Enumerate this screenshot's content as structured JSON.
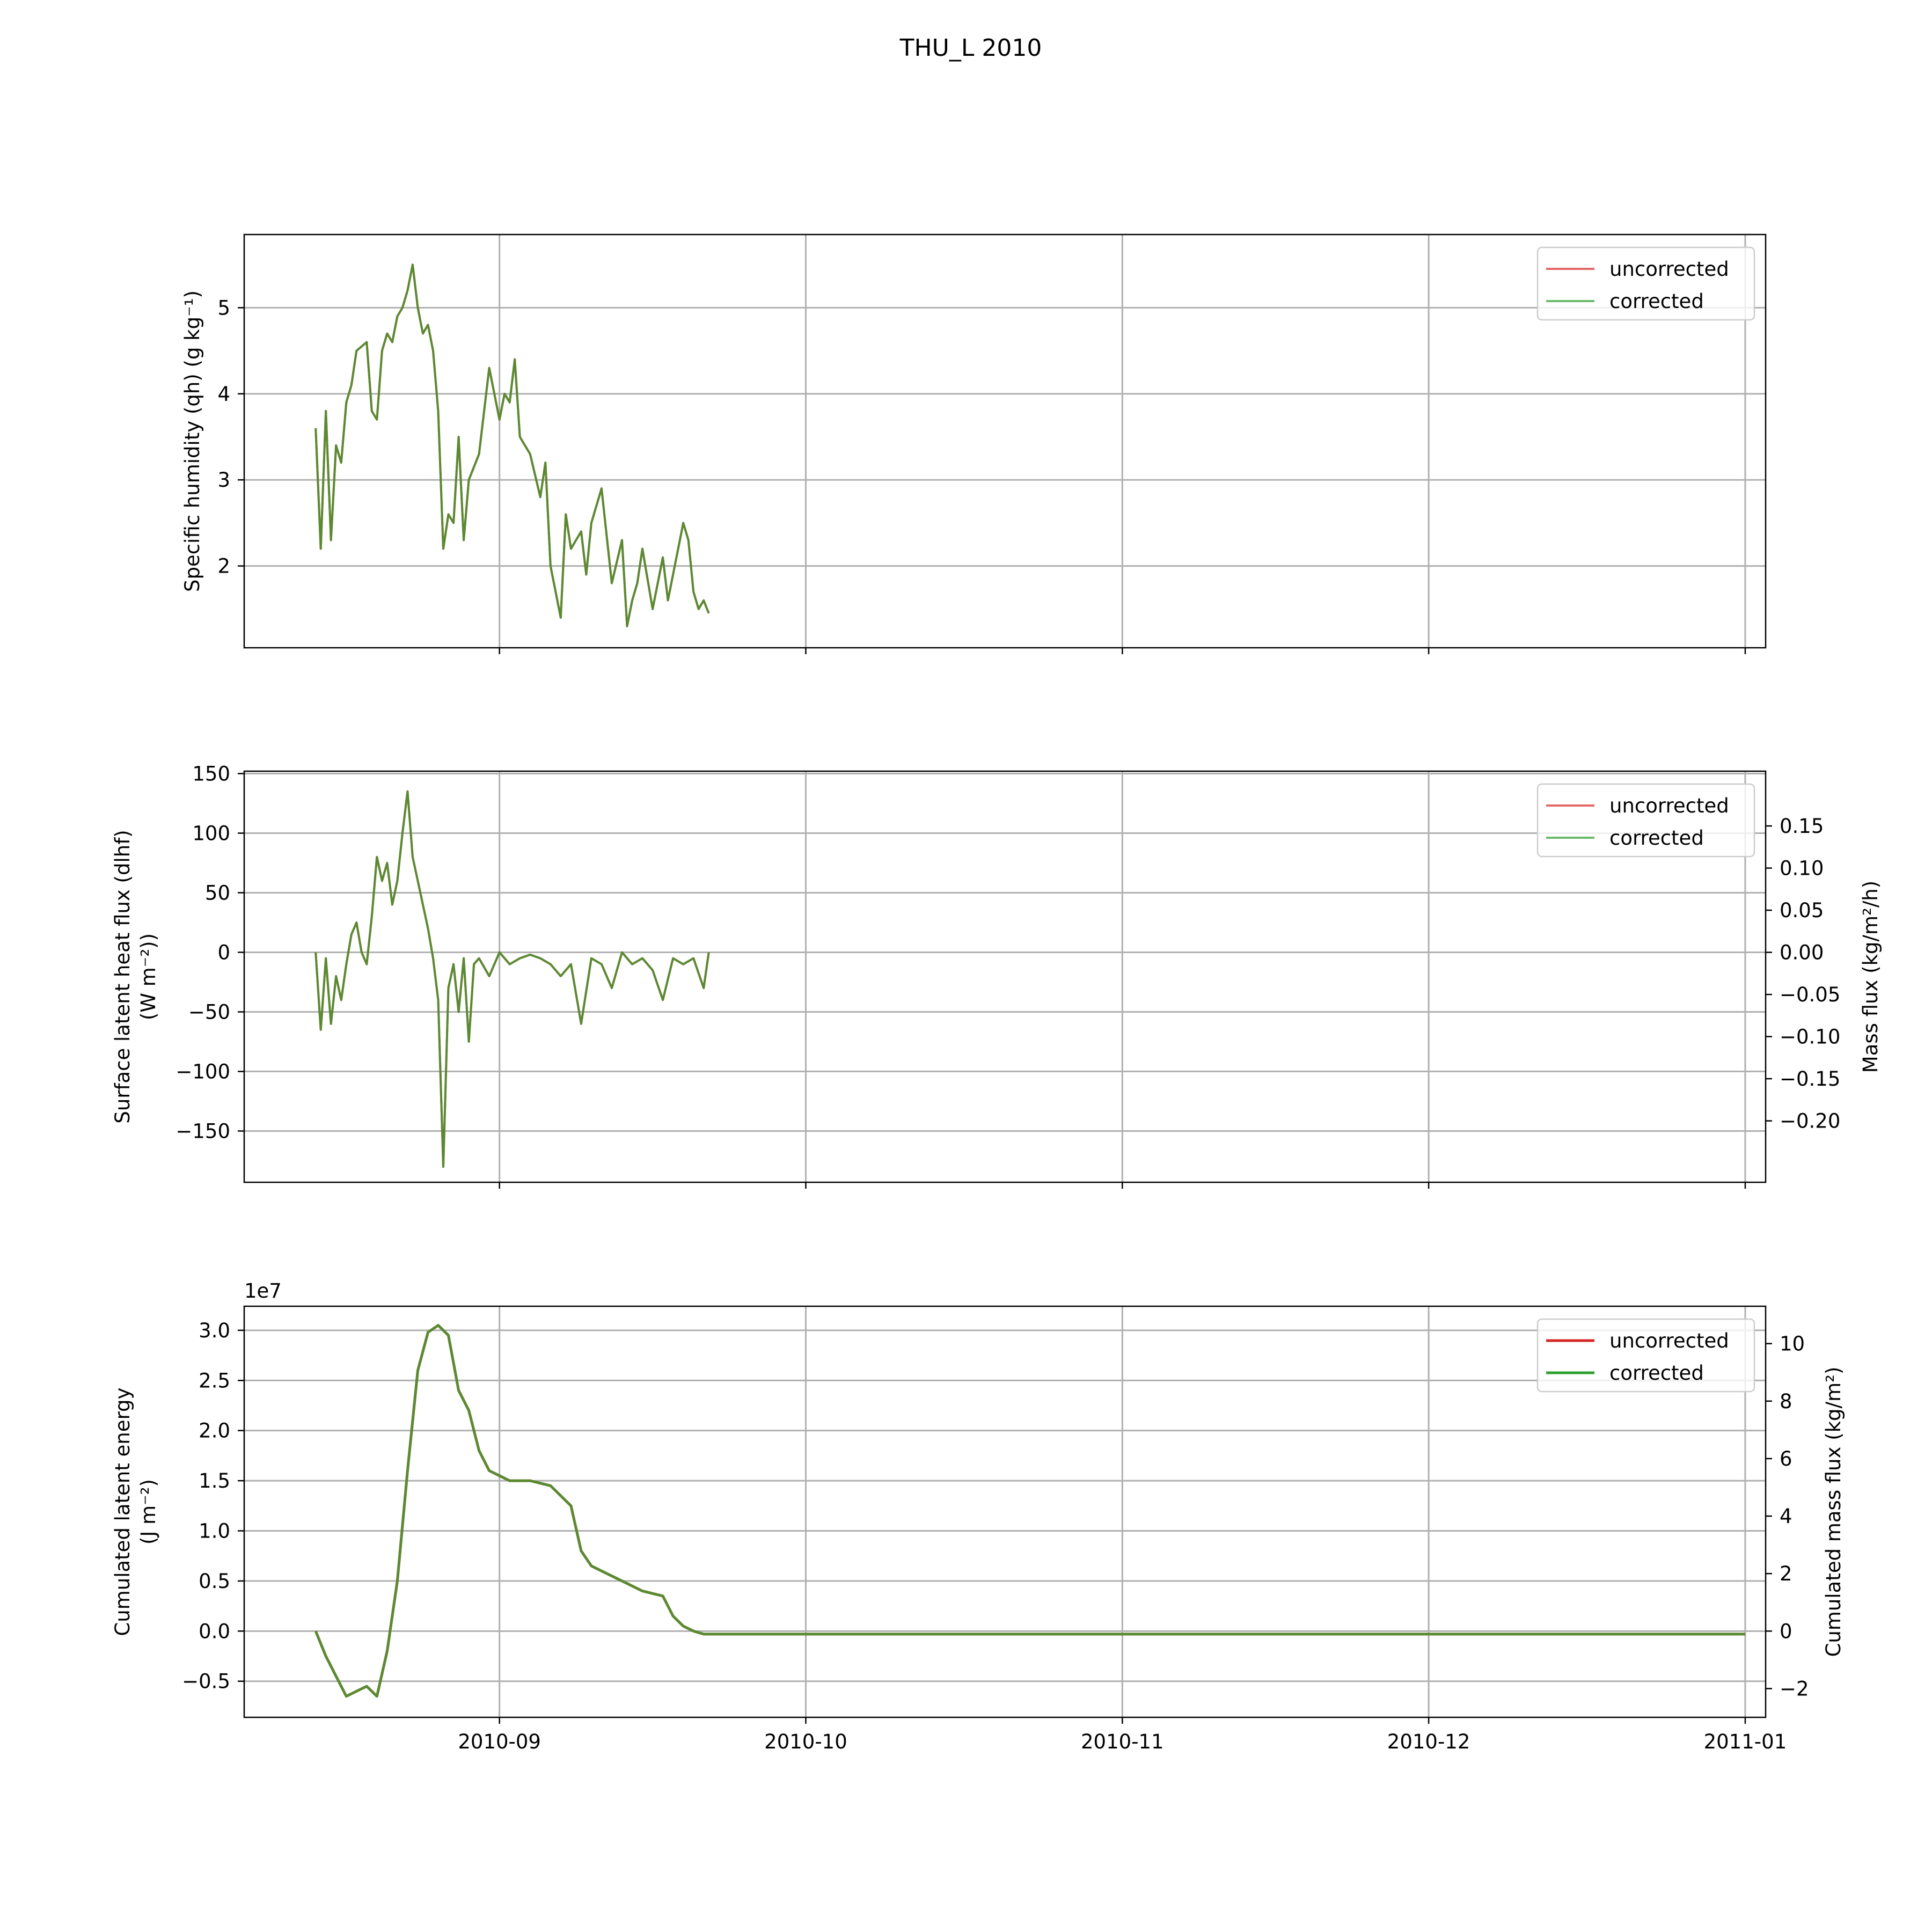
{
  "figure": {
    "title": "THU_L 2010"
  },
  "colors": {
    "uncorrected": "#d62728",
    "corrected": "#2ca02c",
    "overlap": "#5a8a32",
    "grid": "#b0b0b0"
  },
  "xaxis": {
    "type": "date",
    "range": [
      "2010-08-07",
      "2011-01-03"
    ],
    "ticks": [
      {
        "date": "2010-09-01",
        "label": "2010-09"
      },
      {
        "date": "2010-10-01",
        "label": "2010-10"
      },
      {
        "date": "2010-11-01",
        "label": "2010-11"
      },
      {
        "date": "2010-12-01",
        "label": "2010-12"
      },
      {
        "date": "2011-01-01",
        "label": "2011-01"
      }
    ]
  },
  "chart_data": [
    {
      "type": "line",
      "ylabel": "Specific humidity (qh) (g kg⁻¹)",
      "ylim": [
        1.05,
        5.85
      ],
      "yticks": [
        2,
        3,
        4,
        5
      ],
      "grid": true,
      "legend": {
        "placement": "upper-right",
        "entries": [
          "uncorrected",
          "corrected"
        ]
      },
      "series": [
        {
          "name": "uncorrected",
          "x": [
            "2010-08-14",
            "2010-08-14T12:00",
            "2010-08-15",
            "2010-08-15T12:00",
            "2010-08-16",
            "2010-08-16T12:00",
            "2010-08-17",
            "2010-08-17T12:00",
            "2010-08-18",
            "2010-08-19",
            "2010-08-19T12:00",
            "2010-08-20",
            "2010-08-20T12:00",
            "2010-08-21",
            "2010-08-21T12:00",
            "2010-08-22",
            "2010-08-22T12:00",
            "2010-08-23",
            "2010-08-23T12:00",
            "2010-08-24",
            "2010-08-24T12:00",
            "2010-08-25",
            "2010-08-25T12:00",
            "2010-08-26",
            "2010-08-26T12:00",
            "2010-08-27",
            "2010-08-27T12:00",
            "2010-08-28",
            "2010-08-28T12:00",
            "2010-08-29",
            "2010-08-30",
            "2010-08-31",
            "2010-09-01",
            "2010-09-01T12:00",
            "2010-09-02",
            "2010-09-02T12:00",
            "2010-09-03",
            "2010-09-04",
            "2010-09-05",
            "2010-09-05T12:00",
            "2010-09-06",
            "2010-09-06T12:00",
            "2010-09-07",
            "2010-09-07T12:00",
            "2010-09-08",
            "2010-09-09",
            "2010-09-09T12:00",
            "2010-09-10",
            "2010-09-11",
            "2010-09-12",
            "2010-09-13",
            "2010-09-13T12:00",
            "2010-09-14",
            "2010-09-14T12:00",
            "2010-09-15",
            "2010-09-16",
            "2010-09-17",
            "2010-09-17T12:00",
            "2010-09-18",
            "2010-09-19",
            "2010-09-19T12:00",
            "2010-09-20",
            "2010-09-20T12:00",
            "2010-09-21",
            "2010-09-21T12:00"
          ],
          "values": [
            3.6,
            2.2,
            3.8,
            2.3,
            3.4,
            3.2,
            3.9,
            4.1,
            4.5,
            4.6,
            3.8,
            3.7,
            4.5,
            4.7,
            4.6,
            4.9,
            5.0,
            5.2,
            5.5,
            5.0,
            4.7,
            4.8,
            4.5,
            3.8,
            2.2,
            2.6,
            2.5,
            3.5,
            2.3,
            3.0,
            3.3,
            4.3,
            3.7,
            4.0,
            3.9,
            4.4,
            3.5,
            3.3,
            2.8,
            3.2,
            2.0,
            1.7,
            1.4,
            2.6,
            2.2,
            2.4,
            1.9,
            2.5,
            2.9,
            1.8,
            2.3,
            1.3,
            1.6,
            1.8,
            2.2,
            1.5,
            2.1,
            1.6,
            1.9,
            2.5,
            2.3,
            1.7,
            1.5,
            1.6,
            1.45
          ]
        },
        {
          "name": "corrected",
          "x": [
            "2010-08-14",
            "2010-08-14T12:00",
            "2010-08-15",
            "2010-08-15T12:00",
            "2010-08-16",
            "2010-08-16T12:00",
            "2010-08-17",
            "2010-08-17T12:00",
            "2010-08-18",
            "2010-08-19",
            "2010-08-19T12:00",
            "2010-08-20",
            "2010-08-20T12:00",
            "2010-08-21",
            "2010-08-21T12:00",
            "2010-08-22",
            "2010-08-22T12:00",
            "2010-08-23",
            "2010-08-23T12:00",
            "2010-08-24",
            "2010-08-24T12:00",
            "2010-08-25",
            "2010-08-25T12:00",
            "2010-08-26",
            "2010-08-26T12:00",
            "2010-08-27",
            "2010-08-27T12:00",
            "2010-08-28",
            "2010-08-28T12:00",
            "2010-08-29",
            "2010-08-30",
            "2010-08-31",
            "2010-09-01",
            "2010-09-01T12:00",
            "2010-09-02",
            "2010-09-02T12:00",
            "2010-09-03",
            "2010-09-04",
            "2010-09-05",
            "2010-09-05T12:00",
            "2010-09-06",
            "2010-09-06T12:00",
            "2010-09-07",
            "2010-09-07T12:00",
            "2010-09-08",
            "2010-09-09",
            "2010-09-09T12:00",
            "2010-09-10",
            "2010-09-11",
            "2010-09-12",
            "2010-09-13",
            "2010-09-13T12:00",
            "2010-09-14",
            "2010-09-14T12:00",
            "2010-09-15",
            "2010-09-16",
            "2010-09-17",
            "2010-09-17T12:00",
            "2010-09-18",
            "2010-09-19",
            "2010-09-19T12:00",
            "2010-09-20",
            "2010-09-20T12:00",
            "2010-09-21",
            "2010-09-21T12:00"
          ],
          "values": [
            3.6,
            2.2,
            3.8,
            2.3,
            3.4,
            3.2,
            3.9,
            4.1,
            4.5,
            4.6,
            3.8,
            3.7,
            4.5,
            4.7,
            4.6,
            4.9,
            5.0,
            5.2,
            5.5,
            5.0,
            4.7,
            4.8,
            4.5,
            3.8,
            2.2,
            2.6,
            2.5,
            3.5,
            2.3,
            3.0,
            3.3,
            4.3,
            3.7,
            4.0,
            3.9,
            4.4,
            3.5,
            3.3,
            2.8,
            3.2,
            2.0,
            1.7,
            1.4,
            2.6,
            2.2,
            2.4,
            1.9,
            2.5,
            2.9,
            1.8,
            2.3,
            1.3,
            1.6,
            1.8,
            2.2,
            1.5,
            2.1,
            1.6,
            1.9,
            2.5,
            2.3,
            1.7,
            1.5,
            1.6,
            1.45
          ]
        }
      ]
    },
    {
      "type": "line",
      "ylabel": "Surface latent heat flux (dlhf)\n(W m⁻²))",
      "ylim": [
        -193,
        152
      ],
      "yticks": [
        -150,
        -100,
        -50,
        0,
        50,
        100,
        150
      ],
      "ytick_labels": [
        "−150",
        "−100",
        "−50",
        "0",
        "50",
        "100",
        "150"
      ],
      "y2label": "Mass flux (kg/m²/h)",
      "y2lim": [
        -0.2729,
        0.215
      ],
      "y2ticks": [
        -0.2,
        -0.15,
        -0.1,
        -0.05,
        0.0,
        0.05,
        0.1,
        0.15
      ],
      "y2tick_labels": [
        "−0.20",
        "−0.15",
        "−0.10",
        "−0.05",
        "0.00",
        "0.05",
        "0.10",
        "0.15"
      ],
      "grid": true,
      "legend": {
        "placement": "upper-right",
        "entries": [
          "uncorrected",
          "corrected"
        ]
      },
      "series": [
        {
          "name": "uncorrected",
          "x": [
            "2010-08-14",
            "2010-08-14T12:00",
            "2010-08-15",
            "2010-08-15T12:00",
            "2010-08-16",
            "2010-08-16T12:00",
            "2010-08-17",
            "2010-08-17T12:00",
            "2010-08-18",
            "2010-08-18T12:00",
            "2010-08-19",
            "2010-08-19T12:00",
            "2010-08-20",
            "2010-08-20T12:00",
            "2010-08-21",
            "2010-08-21T12:00",
            "2010-08-22",
            "2010-08-22T12:00",
            "2010-08-23",
            "2010-08-23T12:00",
            "2010-08-24",
            "2010-08-24T12:00",
            "2010-08-25",
            "2010-08-25T12:00",
            "2010-08-26",
            "2010-08-26T12:00",
            "2010-08-27",
            "2010-08-27T12:00",
            "2010-08-28",
            "2010-08-28T12:00",
            "2010-08-29",
            "2010-08-29T12:00",
            "2010-08-30",
            "2010-08-31",
            "2010-09-01",
            "2010-09-02",
            "2010-09-03",
            "2010-09-04",
            "2010-09-05",
            "2010-09-06",
            "2010-09-07",
            "2010-09-08",
            "2010-09-09",
            "2010-09-10",
            "2010-09-11",
            "2010-09-12",
            "2010-09-13",
            "2010-09-14",
            "2010-09-15",
            "2010-09-16",
            "2010-09-17",
            "2010-09-18",
            "2010-09-19",
            "2010-09-20",
            "2010-09-21",
            "2010-09-21T12:00"
          ],
          "values": [
            0,
            -65,
            -5,
            -60,
            -20,
            -40,
            -10,
            15,
            25,
            0,
            -10,
            30,
            80,
            60,
            75,
            40,
            60,
            100,
            135,
            80,
            60,
            40,
            20,
            -5,
            -40,
            -180,
            -30,
            -10,
            -50,
            -5,
            -75,
            -10,
            -5,
            -20,
            0,
            -10,
            -5,
            -2,
            -5,
            -10,
            -20,
            -10,
            -60,
            -5,
            -10,
            -30,
            0,
            -10,
            -5,
            -15,
            -40,
            -5,
            -10,
            -5,
            -30,
            0
          ]
        },
        {
          "name": "corrected",
          "x": [
            "2010-08-14",
            "2010-08-14T12:00",
            "2010-08-15",
            "2010-08-15T12:00",
            "2010-08-16",
            "2010-08-16T12:00",
            "2010-08-17",
            "2010-08-17T12:00",
            "2010-08-18",
            "2010-08-18T12:00",
            "2010-08-19",
            "2010-08-19T12:00",
            "2010-08-20",
            "2010-08-20T12:00",
            "2010-08-21",
            "2010-08-21T12:00",
            "2010-08-22",
            "2010-08-22T12:00",
            "2010-08-23",
            "2010-08-23T12:00",
            "2010-08-24",
            "2010-08-24T12:00",
            "2010-08-25",
            "2010-08-25T12:00",
            "2010-08-26",
            "2010-08-26T12:00",
            "2010-08-27",
            "2010-08-27T12:00",
            "2010-08-28",
            "2010-08-28T12:00",
            "2010-08-29",
            "2010-08-29T12:00",
            "2010-08-30",
            "2010-08-31",
            "2010-09-01",
            "2010-09-02",
            "2010-09-03",
            "2010-09-04",
            "2010-09-05",
            "2010-09-06",
            "2010-09-07",
            "2010-09-08",
            "2010-09-09",
            "2010-09-10",
            "2010-09-11",
            "2010-09-12",
            "2010-09-13",
            "2010-09-14",
            "2010-09-15",
            "2010-09-16",
            "2010-09-17",
            "2010-09-18",
            "2010-09-19",
            "2010-09-20",
            "2010-09-21",
            "2010-09-21T12:00"
          ],
          "values": [
            0,
            -65,
            -5,
            -60,
            -20,
            -40,
            -10,
            15,
            25,
            0,
            -10,
            30,
            80,
            60,
            75,
            40,
            60,
            100,
            135,
            80,
            60,
            40,
            20,
            -5,
            -40,
            -180,
            -30,
            -10,
            -50,
            -5,
            -75,
            -10,
            -5,
            -20,
            0,
            -10,
            -5,
            -2,
            -5,
            -10,
            -20,
            -10,
            -60,
            -5,
            -10,
            -30,
            0,
            -10,
            -5,
            -15,
            -40,
            -5,
            -10,
            -5,
            -30,
            0
          ]
        }
      ]
    },
    {
      "type": "line",
      "ylabel": "Cumulated latent energy\n(J m⁻²)",
      "offset_text": "1e7",
      "ylim": [
        -0.86,
        3.24
      ],
      "yticks": [
        -0.5,
        0.0,
        0.5,
        1.0,
        1.5,
        2.0,
        2.5,
        3.0
      ],
      "ytick_labels": [
        "−0.5",
        "0.0",
        "0.5",
        "1.0",
        "1.5",
        "2.0",
        "2.5",
        "3.0"
      ],
      "y2label": "Cumulated mass flux (kg/m²)",
      "y2lim": [
        -3.0,
        11.3
      ],
      "y2ticks": [
        -2,
        0,
        2,
        4,
        6,
        8,
        10
      ],
      "y2tick_labels": [
        "−2",
        "0",
        "2",
        "4",
        "6",
        "8",
        "10"
      ],
      "grid": true,
      "legend": {
        "placement": "upper-right",
        "entries": [
          "uncorrected",
          "corrected"
        ]
      },
      "series": [
        {
          "name": "uncorrected",
          "x": [
            "2010-08-14",
            "2010-08-15",
            "2010-08-16",
            "2010-08-17",
            "2010-08-18",
            "2010-08-19",
            "2010-08-20",
            "2010-08-21",
            "2010-08-22",
            "2010-08-23",
            "2010-08-24",
            "2010-08-25",
            "2010-08-26",
            "2010-08-27",
            "2010-08-28",
            "2010-08-29",
            "2010-08-30",
            "2010-08-31",
            "2010-09-02",
            "2010-09-04",
            "2010-09-06",
            "2010-09-07",
            "2010-09-08",
            "2010-09-09",
            "2010-09-10",
            "2010-09-11",
            "2010-09-13",
            "2010-09-15",
            "2010-09-17",
            "2010-09-18",
            "2010-09-19",
            "2010-09-20",
            "2010-09-21",
            "2010-09-21T12:00",
            "2010-10-01",
            "2010-11-01",
            "2010-12-01",
            "2011-01-01"
          ],
          "values": [
            0.0,
            -0.25,
            -0.45,
            -0.65,
            -0.6,
            -0.55,
            -0.65,
            -0.2,
            0.5,
            1.6,
            2.6,
            2.98,
            3.05,
            2.95,
            2.4,
            2.2,
            1.8,
            1.6,
            1.5,
            1.5,
            1.45,
            1.35,
            1.25,
            0.8,
            0.65,
            0.6,
            0.5,
            0.4,
            0.35,
            0.15,
            0.05,
            0.0,
            -0.03,
            -0.03,
            -0.03,
            -0.03,
            -0.03,
            -0.03
          ]
        },
        {
          "name": "corrected",
          "x": [
            "2010-08-14",
            "2010-08-15",
            "2010-08-16",
            "2010-08-17",
            "2010-08-18",
            "2010-08-19",
            "2010-08-20",
            "2010-08-21",
            "2010-08-22",
            "2010-08-23",
            "2010-08-24",
            "2010-08-25",
            "2010-08-26",
            "2010-08-27",
            "2010-08-28",
            "2010-08-29",
            "2010-08-30",
            "2010-08-31",
            "2010-09-02",
            "2010-09-04",
            "2010-09-06",
            "2010-09-07",
            "2010-09-08",
            "2010-09-09",
            "2010-09-10",
            "2010-09-11",
            "2010-09-13",
            "2010-09-15",
            "2010-09-17",
            "2010-09-18",
            "2010-09-19",
            "2010-09-20",
            "2010-09-21",
            "2010-09-21T12:00",
            "2010-10-01",
            "2010-11-01",
            "2010-12-01",
            "2011-01-01"
          ],
          "values": [
            0.0,
            -0.25,
            -0.45,
            -0.65,
            -0.6,
            -0.55,
            -0.65,
            -0.2,
            0.5,
            1.6,
            2.6,
            2.98,
            3.05,
            2.95,
            2.4,
            2.2,
            1.8,
            1.6,
            1.5,
            1.5,
            1.45,
            1.35,
            1.25,
            0.8,
            0.65,
            0.6,
            0.5,
            0.4,
            0.35,
            0.15,
            0.05,
            0.0,
            -0.03,
            -0.03,
            -0.03,
            -0.03,
            -0.03,
            -0.03
          ]
        }
      ]
    }
  ]
}
